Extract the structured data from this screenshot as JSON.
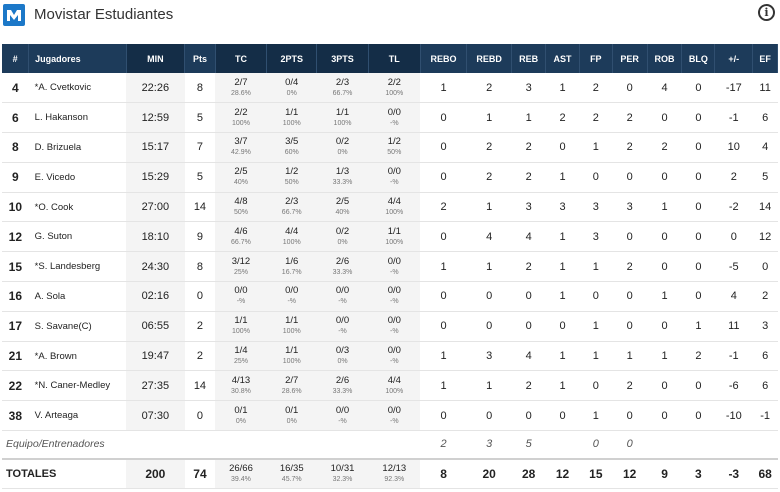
{
  "header": {
    "team_name": "Movistar Estudiantes",
    "logo_letter": "M",
    "info_icon": "i"
  },
  "colors": {
    "header_bg": "#1d3b5a",
    "header_dark": "#142d47",
    "logo_bg": "#1c78c8"
  },
  "columns": [
    "#",
    "Jugadores",
    "MIN",
    "Pts",
    "TC",
    "2PTS",
    "3PTS",
    "TL",
    "REBO",
    "REBD",
    "REB",
    "AST",
    "FP",
    "PER",
    "ROB",
    "BLQ",
    "+/-",
    "EF"
  ],
  "players": [
    {
      "num": "4",
      "name": "*A. Cvetkovic",
      "min": "22:26",
      "pts": "8",
      "tc": "2/7",
      "tc_pct": "28.6%",
      "p2": "0/4",
      "p2_pct": "0%",
      "p3": "2/3",
      "p3_pct": "66.7%",
      "tl": "2/2",
      "tl_pct": "100%",
      "rebo": "1",
      "rebd": "2",
      "reb": "3",
      "ast": "1",
      "fp": "2",
      "per": "0",
      "rob": "4",
      "blq": "0",
      "pm": "-17",
      "ef": "11"
    },
    {
      "num": "6",
      "name": "L. Hakanson",
      "min": "12:59",
      "pts": "5",
      "tc": "2/2",
      "tc_pct": "100%",
      "p2": "1/1",
      "p2_pct": "100%",
      "p3": "1/1",
      "p3_pct": "100%",
      "tl": "0/0",
      "tl_pct": "-%",
      "rebo": "0",
      "rebd": "1",
      "reb": "1",
      "ast": "2",
      "fp": "2",
      "per": "2",
      "rob": "0",
      "blq": "0",
      "pm": "-1",
      "ef": "6"
    },
    {
      "num": "8",
      "name": "D. Brizuela",
      "min": "15:17",
      "pts": "7",
      "tc": "3/7",
      "tc_pct": "42.9%",
      "p2": "3/5",
      "p2_pct": "60%",
      "p3": "0/2",
      "p3_pct": "0%",
      "tl": "1/2",
      "tl_pct": "50%",
      "rebo": "0",
      "rebd": "2",
      "reb": "2",
      "ast": "0",
      "fp": "1",
      "per": "2",
      "rob": "2",
      "blq": "0",
      "pm": "10",
      "ef": "4"
    },
    {
      "num": "9",
      "name": "E. Vicedo",
      "min": "15:29",
      "pts": "5",
      "tc": "2/5",
      "tc_pct": "40%",
      "p2": "1/2",
      "p2_pct": "50%",
      "p3": "1/3",
      "p3_pct": "33.3%",
      "tl": "0/0",
      "tl_pct": "-%",
      "rebo": "0",
      "rebd": "2",
      "reb": "2",
      "ast": "1",
      "fp": "0",
      "per": "0",
      "rob": "0",
      "blq": "0",
      "pm": "2",
      "ef": "5"
    },
    {
      "num": "10",
      "name": "*O. Cook",
      "min": "27:00",
      "pts": "14",
      "tc": "4/8",
      "tc_pct": "50%",
      "p2": "2/3",
      "p2_pct": "66.7%",
      "p3": "2/5",
      "p3_pct": "40%",
      "tl": "4/4",
      "tl_pct": "100%",
      "rebo": "2",
      "rebd": "1",
      "reb": "3",
      "ast": "3",
      "fp": "3",
      "per": "3",
      "rob": "1",
      "blq": "0",
      "pm": "-2",
      "ef": "14"
    },
    {
      "num": "12",
      "name": "G. Suton",
      "min": "18:10",
      "pts": "9",
      "tc": "4/6",
      "tc_pct": "66.7%",
      "p2": "4/4",
      "p2_pct": "100%",
      "p3": "0/2",
      "p3_pct": "0%",
      "tl": "1/1",
      "tl_pct": "100%",
      "rebo": "0",
      "rebd": "4",
      "reb": "4",
      "ast": "1",
      "fp": "3",
      "per": "0",
      "rob": "0",
      "blq": "0",
      "pm": "0",
      "ef": "12"
    },
    {
      "num": "15",
      "name": "*S. Landesberg",
      "min": "24:30",
      "pts": "8",
      "tc": "3/12",
      "tc_pct": "25%",
      "p2": "1/6",
      "p2_pct": "16.7%",
      "p3": "2/6",
      "p3_pct": "33.3%",
      "tl": "0/0",
      "tl_pct": "-%",
      "rebo": "1",
      "rebd": "1",
      "reb": "2",
      "ast": "1",
      "fp": "1",
      "per": "2",
      "rob": "0",
      "blq": "0",
      "pm": "-5",
      "ef": "0"
    },
    {
      "num": "16",
      "name": "A. Sola",
      "min": "02:16",
      "pts": "0",
      "tc": "0/0",
      "tc_pct": "-%",
      "p2": "0/0",
      "p2_pct": "-%",
      "p3": "0/0",
      "p3_pct": "-%",
      "tl": "0/0",
      "tl_pct": "-%",
      "rebo": "0",
      "rebd": "0",
      "reb": "0",
      "ast": "1",
      "fp": "0",
      "per": "0",
      "rob": "1",
      "blq": "0",
      "pm": "4",
      "ef": "2"
    },
    {
      "num": "17",
      "name": "S. Savane(C)",
      "min": "06:55",
      "pts": "2",
      "tc": "1/1",
      "tc_pct": "100%",
      "p2": "1/1",
      "p2_pct": "100%",
      "p3": "0/0",
      "p3_pct": "-%",
      "tl": "0/0",
      "tl_pct": "-%",
      "rebo": "0",
      "rebd": "0",
      "reb": "0",
      "ast": "0",
      "fp": "1",
      "per": "0",
      "rob": "0",
      "blq": "1",
      "pm": "11",
      "ef": "3"
    },
    {
      "num": "21",
      "name": "*A. Brown",
      "min": "19:47",
      "pts": "2",
      "tc": "1/4",
      "tc_pct": "25%",
      "p2": "1/1",
      "p2_pct": "100%",
      "p3": "0/3",
      "p3_pct": "0%",
      "tl": "0/0",
      "tl_pct": "-%",
      "rebo": "1",
      "rebd": "3",
      "reb": "4",
      "ast": "1",
      "fp": "1",
      "per": "1",
      "rob": "1",
      "blq": "2",
      "pm": "-1",
      "ef": "6"
    },
    {
      "num": "22",
      "name": "*N. Caner-Medley",
      "min": "27:35",
      "pts": "14",
      "tc": "4/13",
      "tc_pct": "30.8%",
      "p2": "2/7",
      "p2_pct": "28.6%",
      "p3": "2/6",
      "p3_pct": "33.3%",
      "tl": "4/4",
      "tl_pct": "100%",
      "rebo": "1",
      "rebd": "1",
      "reb": "2",
      "ast": "1",
      "fp": "0",
      "per": "2",
      "rob": "0",
      "blq": "0",
      "pm": "-6",
      "ef": "6"
    },
    {
      "num": "38",
      "name": "V. Arteaga",
      "min": "07:30",
      "pts": "0",
      "tc": "0/1",
      "tc_pct": "0%",
      "p2": "0/1",
      "p2_pct": "0%",
      "p3": "0/0",
      "p3_pct": "-%",
      "tl": "0/0",
      "tl_pct": "-%",
      "rebo": "0",
      "rebd": "0",
      "reb": "0",
      "ast": "0",
      "fp": "1",
      "per": "0",
      "rob": "0",
      "blq": "0",
      "pm": "-10",
      "ef": "-1"
    }
  ],
  "team_row": {
    "label": "Equipo/Entrenadores",
    "rebo": "2",
    "rebd": "3",
    "reb": "5",
    "fp": "0",
    "per": "0"
  },
  "totals": {
    "label": "TOTALES",
    "min": "200",
    "pts": "74",
    "tc": "26/66",
    "tc_pct": "39.4%",
    "p2": "16/35",
    "p2_pct": "45.7%",
    "p3": "10/31",
    "p3_pct": "32.3%",
    "tl": "12/13",
    "tl_pct": "92.3%",
    "rebo": "8",
    "rebd": "20",
    "reb": "28",
    "ast": "12",
    "fp": "15",
    "per": "12",
    "rob": "9",
    "blq": "3",
    "pm": "-3",
    "ef": "68"
  }
}
